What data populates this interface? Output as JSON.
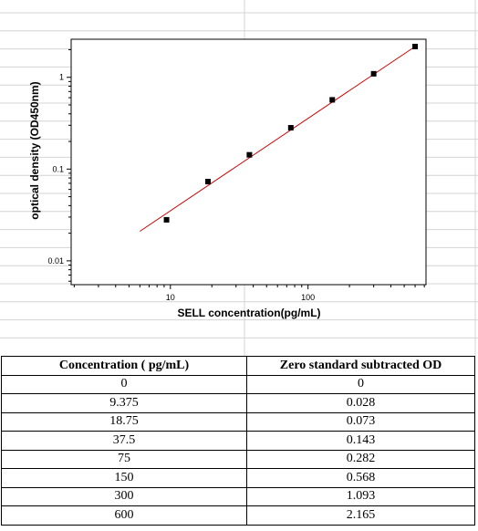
{
  "chart_data": {
    "type": "scatter",
    "xlabel": "SELL  concentration(pg/mL)",
    "ylabel": "optical density (OD450nm)",
    "xscale": "log",
    "yscale": "log",
    "xlim": [
      1.9,
      720
    ],
    "ylim": [
      0.0055,
      2.6
    ],
    "xticks": [
      10,
      100
    ],
    "yticks": [
      0.01,
      0.1,
      1
    ],
    "xtick_labels": [
      "10",
      "100"
    ],
    "ytick_labels": [
      "0.01",
      "0.1",
      "1"
    ],
    "points": {
      "x": [
        9.375,
        18.75,
        37.5,
        75,
        150,
        300,
        600
      ],
      "y": [
        0.028,
        0.073,
        0.143,
        0.282,
        0.568,
        1.093,
        2.165
      ]
    },
    "fit_line": {
      "x": [
        6.0,
        600
      ],
      "y": [
        0.021,
        2.165
      ],
      "color": "#cc0000"
    },
    "marker_color": "#000000",
    "grid": false
  },
  "table": {
    "headers": [
      "Concentration ( pg/mL)",
      "Zero standard subtracted OD"
    ],
    "rows": [
      [
        "0",
        "0"
      ],
      [
        "9.375",
        "0.028"
      ],
      [
        "18.75",
        "0.073"
      ],
      [
        "37.5",
        "0.143"
      ],
      [
        "75",
        "0.282"
      ],
      [
        "150",
        "0.568"
      ],
      [
        "300",
        "1.093"
      ],
      [
        "600",
        "2.165"
      ]
    ]
  }
}
